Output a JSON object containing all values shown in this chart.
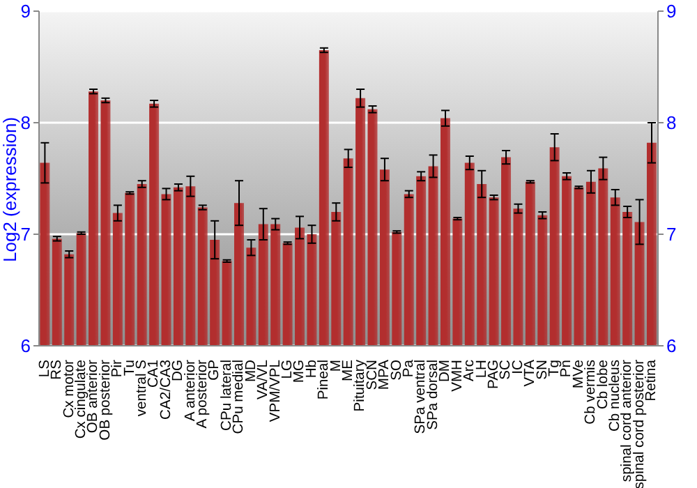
{
  "chart_data": {
    "type": "bar",
    "ylabel": "Log2 (expression)",
    "categories": [
      "LS",
      "RS",
      "Cx motor",
      "Cx cingulate",
      "OB anterior",
      "OB posterior",
      "Pir",
      "Tu",
      "ventral S",
      "CA1",
      "CA2/CA3",
      "DG",
      "A anterior",
      "A posterior",
      "GP",
      "CPu lateral",
      "CPu medial",
      "MD",
      "VA/VL",
      "VPM/VPL",
      "LG",
      "MG",
      "Hb",
      "Pineal",
      "M",
      "ME",
      "Pituitary",
      "SCN",
      "MPA",
      "SO",
      "Pa",
      "SPa ventral",
      "SPa dorsal",
      "DM",
      "VMH",
      "Arc",
      "LH",
      "PAG",
      "SC",
      "IC",
      "VTA",
      "SN",
      "Tg",
      "Pn",
      "MVe",
      "Cb vermis",
      "Cb lobe",
      "Cb nucleus",
      "spinal cord anterior",
      "spinal cord posterior",
      "Retina"
    ],
    "values": [
      7.64,
      6.96,
      6.82,
      7.01,
      8.28,
      8.2,
      7.19,
      7.37,
      7.45,
      8.17,
      7.36,
      7.42,
      7.43,
      7.24,
      6.95,
      6.76,
      7.28,
      6.88,
      7.09,
      7.09,
      6.92,
      7.06,
      7.0,
      8.65,
      7.2,
      7.68,
      8.22,
      8.12,
      7.58,
      7.02,
      7.36,
      7.52,
      7.61,
      8.04,
      7.14,
      7.64,
      7.45,
      7.33,
      7.69,
      7.23,
      7.47,
      7.17,
      7.78,
      7.52,
      7.42,
      7.47,
      7.59,
      7.33,
      7.2,
      7.11,
      7.82
    ],
    "errors": [
      0.18,
      0.02,
      0.03,
      0.01,
      0.02,
      0.02,
      0.07,
      0.01,
      0.03,
      0.03,
      0.05,
      0.03,
      0.09,
      0.02,
      0.17,
      0.01,
      0.2,
      0.07,
      0.14,
      0.05,
      0.01,
      0.1,
      0.08,
      0.02,
      0.08,
      0.08,
      0.08,
      0.03,
      0.1,
      0.01,
      0.03,
      0.04,
      0.1,
      0.07,
      0.01,
      0.06,
      0.12,
      0.02,
      0.06,
      0.04,
      0.01,
      0.03,
      0.12,
      0.03,
      0.01,
      0.1,
      0.1,
      0.07,
      0.05,
      0.2,
      0.18
    ],
    "color": "#b22e2e",
    "ylim": [
      6,
      9
    ],
    "yticks": [
      6,
      7,
      8,
      9
    ],
    "y2lim": [
      6,
      9
    ],
    "y2ticks": [
      6,
      7,
      8,
      9
    ],
    "grid": "y"
  }
}
